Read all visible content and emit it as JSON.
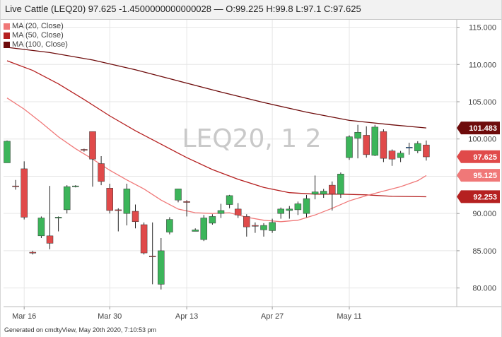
{
  "header": {
    "title": "Live Cattle (LEQ20) 97.625 -1.4500000000000028 — O:99.225 H:99.8 L:97.1 C:97.625"
  },
  "legend": [
    {
      "label": "MA (20, Close)",
      "color": "#f07878"
    },
    {
      "label": "MA (50, Close)",
      "color": "#b52020"
    },
    {
      "label": "MA (100, Close)",
      "color": "#6e0b0b"
    }
  ],
  "footer": "Generated on cmdtyView, May 20th 2020, 7:10:53 pm",
  "colors": {
    "up": "#3cb55a",
    "down": "#e04a4a",
    "doji": "#2f7fd6",
    "grid": "#e6e6e6",
    "ma20": "#f07878",
    "ma50": "#b52020",
    "ma100": "#6e0b0b",
    "tag_ma100": "#6e0b0b",
    "tag_close": "#e04a4a",
    "tag_ma20": "#f07878",
    "tag_ma50": "#b52020"
  },
  "chart_data": {
    "type": "candlestick",
    "title": "Live Cattle (LEQ20)",
    "watermark": "LEQ20, 1 2",
    "x_ticks": [
      {
        "label": "Mar 16",
        "i": 2
      },
      {
        "label": "Mar 30",
        "i": 12
      },
      {
        "label": "Apr 13",
        "i": 21
      },
      {
        "label": "Apr 27",
        "i": 31
      },
      {
        "label": "May 11",
        "i": 40
      }
    ],
    "ylim": [
      77.5,
      116.0
    ],
    "y_ticks": [
      "80.000",
      "85.000",
      "90.000",
      "95.000",
      "100.000",
      "105.000",
      "110.000",
      "115.000"
    ],
    "grid": true,
    "legend_position": "top-left",
    "candles": [
      {
        "o": 96.8,
        "h": 99.8,
        "l": 96.8,
        "c": 99.7
      },
      {
        "o": 93.7,
        "h": 94.5,
        "l": 93.2,
        "c": 93.6
      },
      {
        "o": 96.0,
        "h": 97.0,
        "l": 89.2,
        "c": 89.5
      },
      {
        "o": 84.8,
        "h": 85.0,
        "l": 84.5,
        "c": 84.7
      },
      {
        "o": 87.0,
        "h": 89.6,
        "l": 86.7,
        "c": 89.4
      },
      {
        "o": 87.0,
        "h": 93.7,
        "l": 85.2,
        "c": 86.0
      },
      {
        "o": 89.4,
        "h": 89.6,
        "l": 87.6,
        "c": 89.5
      },
      {
        "o": 90.5,
        "h": 93.8,
        "l": 90.0,
        "c": 93.6
      },
      {
        "o": 93.6,
        "h": 93.8,
        "l": 93.5,
        "c": 93.7
      },
      {
        "o": 98.6,
        "h": 98.7,
        "l": 98.3,
        "c": 98.5
      },
      {
        "o": 101.0,
        "h": 101.0,
        "l": 93.6,
        "c": 97.3
      },
      {
        "o": 96.7,
        "h": 97.7,
        "l": 93.8,
        "c": 94.3
      },
      {
        "o": 93.4,
        "h": 94.0,
        "l": 90.0,
        "c": 90.4
      },
      {
        "o": 90.5,
        "h": 90.7,
        "l": 87.6,
        "c": 90.4
      },
      {
        "o": 90.0,
        "h": 94.0,
        "l": 88.4,
        "c": 93.3
      },
      {
        "o": 90.3,
        "h": 91.2,
        "l": 88.0,
        "c": 88.9
      },
      {
        "o": 88.5,
        "h": 88.8,
        "l": 84.5,
        "c": 84.7
      },
      {
        "o": 84.3,
        "h": 88.8,
        "l": 80.5,
        "c": 84.2
      },
      {
        "o": 80.5,
        "h": 86.7,
        "l": 79.8,
        "c": 85.0
      },
      {
        "o": 87.5,
        "h": 89.5,
        "l": 87.2,
        "c": 89.2
      },
      {
        "o": 91.8,
        "h": 93.3,
        "l": 91.5,
        "c": 93.3
      },
      {
        "o": 91.6,
        "h": 91.8,
        "l": 89.6,
        "c": 91.5
      },
      {
        "o": 87.6,
        "h": 88.0,
        "l": 87.6,
        "c": 87.8
      },
      {
        "o": 86.5,
        "h": 89.8,
        "l": 86.3,
        "c": 89.4
      },
      {
        "o": 88.7,
        "h": 89.9,
        "l": 88.5,
        "c": 89.6
      },
      {
        "o": 90.0,
        "h": 91.3,
        "l": 89.4,
        "c": 90.4
      },
      {
        "o": 91.2,
        "h": 92.5,
        "l": 90.7,
        "c": 92.4
      },
      {
        "o": 90.6,
        "h": 91.4,
        "l": 89.4,
        "c": 89.8
      },
      {
        "o": 89.6,
        "h": 89.9,
        "l": 86.9,
        "c": 88.2
      },
      {
        "o": 88.4,
        "h": 88.8,
        "l": 87.4,
        "c": 88.3
      },
      {
        "o": 87.8,
        "h": 88.7,
        "l": 86.9,
        "c": 88.4
      },
      {
        "o": 87.7,
        "h": 89.3,
        "l": 87.4,
        "c": 88.8
      },
      {
        "o": 90.0,
        "h": 90.8,
        "l": 89.3,
        "c": 90.6
      },
      {
        "o": 90.4,
        "h": 91.0,
        "l": 89.3,
        "c": 90.6
      },
      {
        "o": 90.5,
        "h": 91.6,
        "l": 89.8,
        "c": 91.3
      },
      {
        "o": 90.0,
        "h": 92.5,
        "l": 89.5,
        "c": 92.0
      },
      {
        "o": 92.6,
        "h": 95.1,
        "l": 91.9,
        "c": 92.9
      },
      {
        "o": 92.6,
        "h": 93.3,
        "l": 92.1,
        "c": 93.0
      },
      {
        "o": 93.8,
        "h": 94.3,
        "l": 90.4,
        "c": 92.6
      },
      {
        "o": 92.6,
        "h": 95.5,
        "l": 92.1,
        "c": 95.3
      },
      {
        "o": 97.5,
        "h": 100.5,
        "l": 97.2,
        "c": 100.3
      },
      {
        "o": 100.1,
        "h": 101.9,
        "l": 97.4,
        "c": 100.9
      },
      {
        "o": 100.5,
        "h": 101.7,
        "l": 97.5,
        "c": 97.9
      },
      {
        "o": 97.8,
        "h": 101.9,
        "l": 97.7,
        "c": 101.6
      },
      {
        "o": 101.0,
        "h": 101.3,
        "l": 96.9,
        "c": 97.4
      },
      {
        "o": 98.4,
        "h": 98.6,
        "l": 96.4,
        "c": 97.3
      },
      {
        "o": 97.5,
        "h": 98.4,
        "l": 96.9,
        "c": 98.1
      },
      {
        "o": 98.9,
        "h": 99.5,
        "l": 97.9,
        "c": 98.9
      },
      {
        "o": 98.4,
        "h": 99.7,
        "l": 98.1,
        "c": 99.4
      },
      {
        "o": 99.2,
        "h": 99.8,
        "l": 97.1,
        "c": 97.6
      }
    ],
    "ma20": [
      {
        "i": 0,
        "v": 105.5
      },
      {
        "i": 2,
        "v": 104.0
      },
      {
        "i": 4,
        "v": 102.2
      },
      {
        "i": 6,
        "v": 100.3
      },
      {
        "i": 8,
        "v": 98.7
      },
      {
        "i": 10,
        "v": 97.3
      },
      {
        "i": 12,
        "v": 95.8
      },
      {
        "i": 14,
        "v": 94.5
      },
      {
        "i": 16,
        "v": 93.3
      },
      {
        "i": 18,
        "v": 91.8
      },
      {
        "i": 20,
        "v": 90.6
      },
      {
        "i": 22,
        "v": 90.1
      },
      {
        "i": 24,
        "v": 90.0
      },
      {
        "i": 26,
        "v": 90.1
      },
      {
        "i": 28,
        "v": 89.5
      },
      {
        "i": 30,
        "v": 89.1
      },
      {
        "i": 32,
        "v": 88.9
      },
      {
        "i": 34,
        "v": 89.1
      },
      {
        "i": 36,
        "v": 89.8
      },
      {
        "i": 38,
        "v": 90.7
      },
      {
        "i": 40,
        "v": 91.7
      },
      {
        "i": 42,
        "v": 92.4
      },
      {
        "i": 44,
        "v": 93.0
      },
      {
        "i": 46,
        "v": 93.6
      },
      {
        "i": 48,
        "v": 94.4
      },
      {
        "i": 49,
        "v": 95.1
      }
    ],
    "ma50": [
      {
        "i": 0,
        "v": 110.5
      },
      {
        "i": 3,
        "v": 109.2
      },
      {
        "i": 6,
        "v": 107.4
      },
      {
        "i": 9,
        "v": 105.3
      },
      {
        "i": 12,
        "v": 103.1
      },
      {
        "i": 15,
        "v": 101.1
      },
      {
        "i": 18,
        "v": 99.3
      },
      {
        "i": 21,
        "v": 97.5
      },
      {
        "i": 24,
        "v": 95.9
      },
      {
        "i": 27,
        "v": 94.6
      },
      {
        "i": 30,
        "v": 93.5
      },
      {
        "i": 33,
        "v": 92.8
      },
      {
        "i": 36,
        "v": 92.6
      },
      {
        "i": 39,
        "v": 92.6
      },
      {
        "i": 42,
        "v": 92.5
      },
      {
        "i": 45,
        "v": 92.3
      },
      {
        "i": 49,
        "v": 92.25
      }
    ],
    "ma100": [
      {
        "i": 0,
        "v": 112.3
      },
      {
        "i": 5,
        "v": 111.6
      },
      {
        "i": 10,
        "v": 110.6
      },
      {
        "i": 15,
        "v": 109.3
      },
      {
        "i": 20,
        "v": 107.8
      },
      {
        "i": 25,
        "v": 106.3
      },
      {
        "i": 30,
        "v": 104.9
      },
      {
        "i": 35,
        "v": 103.6
      },
      {
        "i": 40,
        "v": 102.5
      },
      {
        "i": 45,
        "v": 101.9
      },
      {
        "i": 49,
        "v": 101.48
      }
    ],
    "value_tags": [
      {
        "label": "101.483",
        "value": 101.483,
        "series": "ma100"
      },
      {
        "label": "97.625",
        "value": 97.625,
        "series": "close"
      },
      {
        "label": "95.125",
        "value": 95.125,
        "series": "ma20"
      },
      {
        "label": "92.253",
        "value": 92.253,
        "series": "ma50"
      }
    ]
  }
}
